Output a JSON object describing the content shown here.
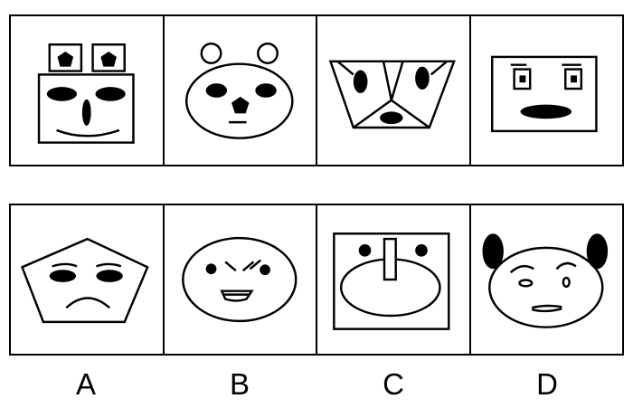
{
  "puzzle": {
    "top_row": [
      {
        "face": "rectangle-face-with-square-ears"
      },
      {
        "face": "ellipse-face-with-circle-ears"
      },
      {
        "face": "trapezoid-face"
      },
      {
        "face": "rectangle-face-with-square-eyes"
      }
    ],
    "options": [
      {
        "label": "A",
        "face": "pentagon-face"
      },
      {
        "label": "B",
        "face": "ellipse-angry-face"
      },
      {
        "label": "C",
        "face": "square-frame-ellipse-face"
      },
      {
        "label": "D",
        "face": "ellipse-face-with-black-ears"
      }
    ]
  }
}
